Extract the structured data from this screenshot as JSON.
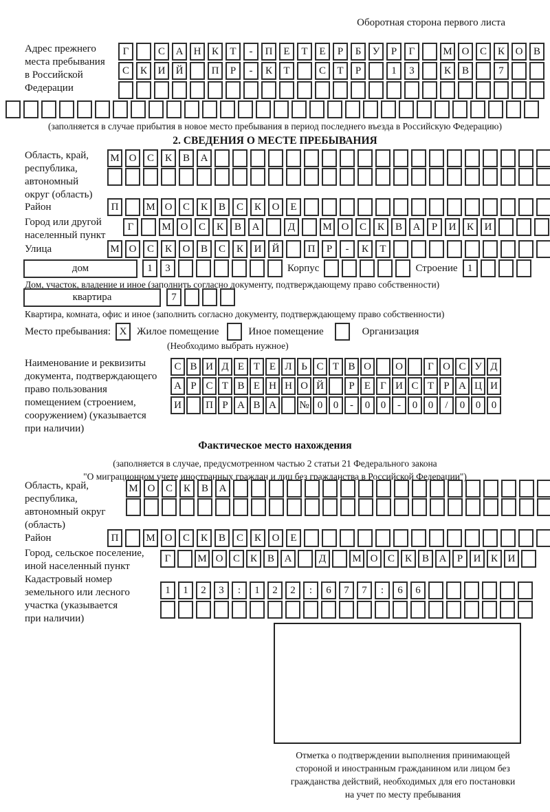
{
  "header": {
    "back_note": "Оборотная сторона первого листа"
  },
  "prev_address": {
    "label": "Адрес прежнего\nместа пребывания\nв Российской\nФедерации",
    "line1": "Г САНКТ-ПЕТЕРБУРГ МОСКОВ",
    "line2": "СКИЙ ПР-КТ СТР 13 КВ 7",
    "line3": "",
    "line4": "",
    "footnote": "(заполняется в случае прибытия в новое место пребывания в период последнего въезда в Российскую Федерацию)"
  },
  "section2": {
    "title": "2. СВЕДЕНИЯ О МЕСТЕ ПРЕБЫВАНИЯ",
    "region_label": "Область, край,\nреспублика,\nавтономный\nокруг (область)",
    "region_line1": "МОСКВА",
    "region_line2": "",
    "district_label": "Район",
    "district_value": "П МОСКВСКОЕ",
    "city_label": "Город или другой\nнаселенный пункт",
    "city_value": "Г МОСКВА Д МОСКВАРИКИ",
    "street_label": "Улица",
    "street_value": "МОСКОВСКИЙ ПР-КТ",
    "house_box_label": "дом",
    "house_value": "13",
    "korpus_label": "Корпус",
    "korpus_value": "",
    "stroenie_label": "Строение",
    "stroenie_value": "1",
    "house_caption": "Дом, участок, владение и иное (заполнить согласно документу, подтверждающему право собственности)",
    "flat_box_label": "квартира",
    "flat_value": "7",
    "flat_caption": "Квартира, комната, офис и иное (заполнить согласно документу, подтверждающему право собственности)",
    "stay_label": "Место пребывания:",
    "stay_options": [
      {
        "label": "Жилое помещение",
        "mark": "X"
      },
      {
        "label": "Иное помещение",
        "mark": ""
      },
      {
        "label": "Организация",
        "mark": ""
      }
    ],
    "stay_caption": "(Необходимо выбрать нужное)",
    "doc_label": "Наименование и реквизиты\nдокумента, подтверждающего\nправо пользования\nпомещением (строением,\nсооружением) (указывается\nпри наличии)",
    "doc_line1": "СВИДЕТЕЛЬСТВО О ГОСУД",
    "doc_line2": "АРСТВЕННОЙ РЕГИСТРАЦИ",
    "doc_line3": "И ПРАВА №00-00-00/000"
  },
  "actual_location": {
    "title": "Фактическое место нахождения",
    "note": "(заполняется в случае, предусмотренном частью 2 статьи 21 Федерального закона\n\"О миграционном учете иностранных граждан и лиц без гражданства в Российской Федерации\")",
    "region_label": "Область, край,\nреспублика,\nавтономный округ\n(область)",
    "region_line1": "МОСКВА",
    "region_line2": "",
    "district_label": "Район",
    "district_value": "П МОСКВСКОЕ",
    "city_label": "Город, сельское поселение,\nиной населенный пункт",
    "city_value": "Г МОСКВА Д МОСКВАРИКИ",
    "cadastral_label": "Кадастровый номер\nземельного или лесного\nучастка (указывается\nпри наличии)",
    "cadastral_line1": "1123:122:677:66",
    "cadastral_line2": "",
    "stamp_caption": "Отметка о подтверждении выполнения принимающей\nстороной и иностранным гражданином или лицом без\nгражданства действий, необходимых для его постановки\nна учет по месту пребывания"
  }
}
